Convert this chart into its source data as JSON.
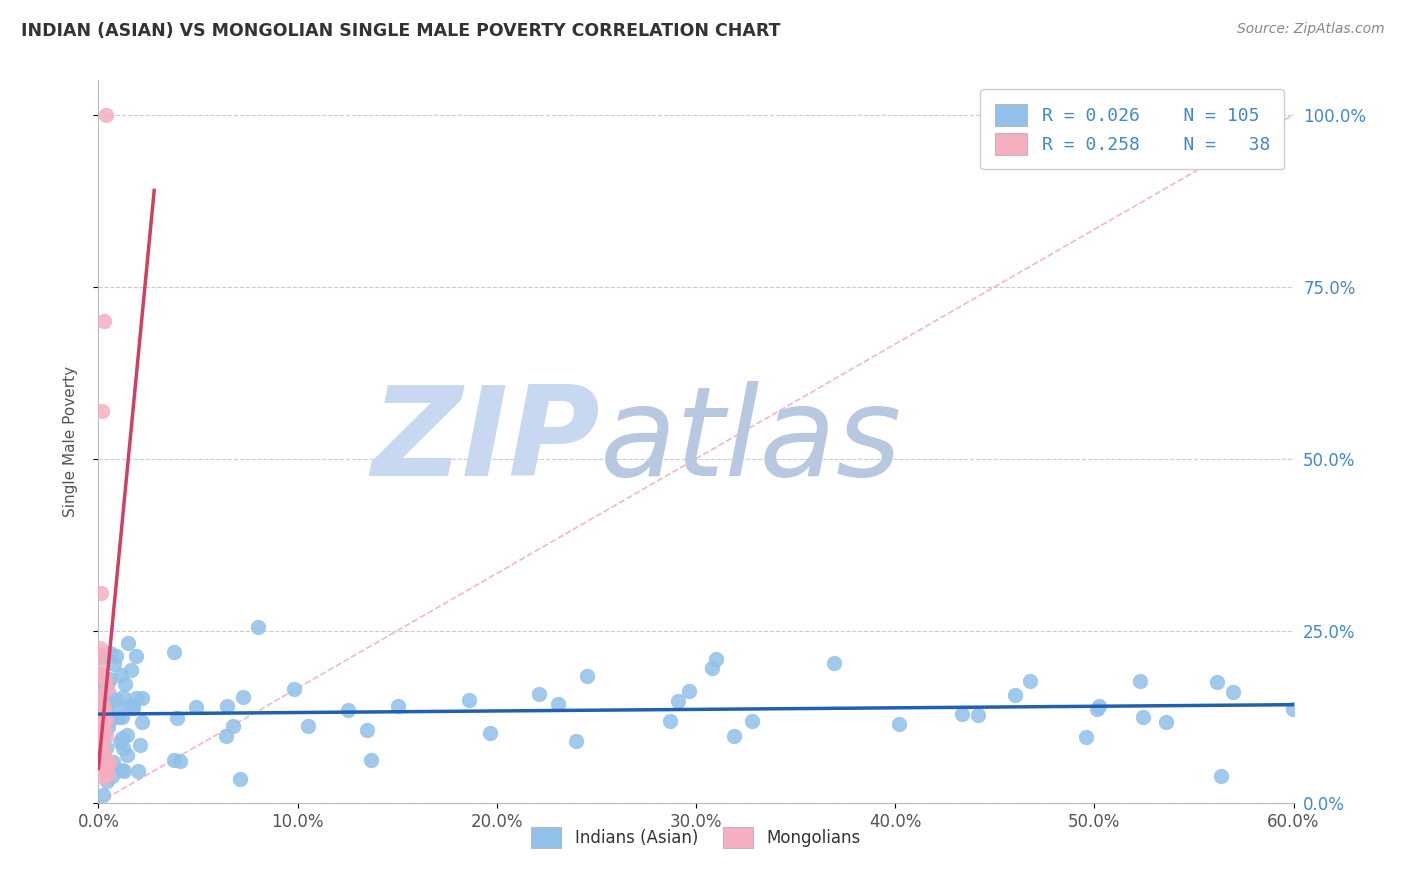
{
  "title": "INDIAN (ASIAN) VS MONGOLIAN SINGLE MALE POVERTY CORRELATION CHART",
  "source_text": "Source: ZipAtlas.com",
  "ylabel": "Single Male Poverty",
  "xlim": [
    0.0,
    0.6
  ],
  "ylim": [
    0.0,
    1.05
  ],
  "xtick_positions": [
    0.0,
    0.1,
    0.2,
    0.3,
    0.4,
    0.5,
    0.6
  ],
  "xticklabels": [
    "0.0%",
    "10.0%",
    "20.0%",
    "30.0%",
    "40.0%",
    "50.0%",
    "60.0%"
  ],
  "ytick_positions": [
    0.0,
    0.25,
    0.5,
    0.75,
    1.0
  ],
  "yticklabels_right": [
    "0.0%",
    "25.0%",
    "50.0%",
    "75.0%",
    "100.0%"
  ],
  "blue_color": "#91c0e8",
  "pink_color": "#f4afc0",
  "blue_line_color": "#2060b0",
  "pink_line_color": "#d04060",
  "diag_line_color": "#f4afc0",
  "title_color": "#333333",
  "axis_label_color": "#555555",
  "tick_color": "#555555",
  "right_tick_color": "#4488cc",
  "grid_color": "#cccccc",
  "watermark_zip_color": "#c8d8f0",
  "watermark_atlas_color": "#b8c8e0",
  "legend_R1": "0.026",
  "legend_N1": "105",
  "legend_R2": "0.258",
  "legend_N2": "38",
  "legend_label1": "Indians (Asian)",
  "legend_label2": "Mongolians",
  "scatter_size": 110
}
